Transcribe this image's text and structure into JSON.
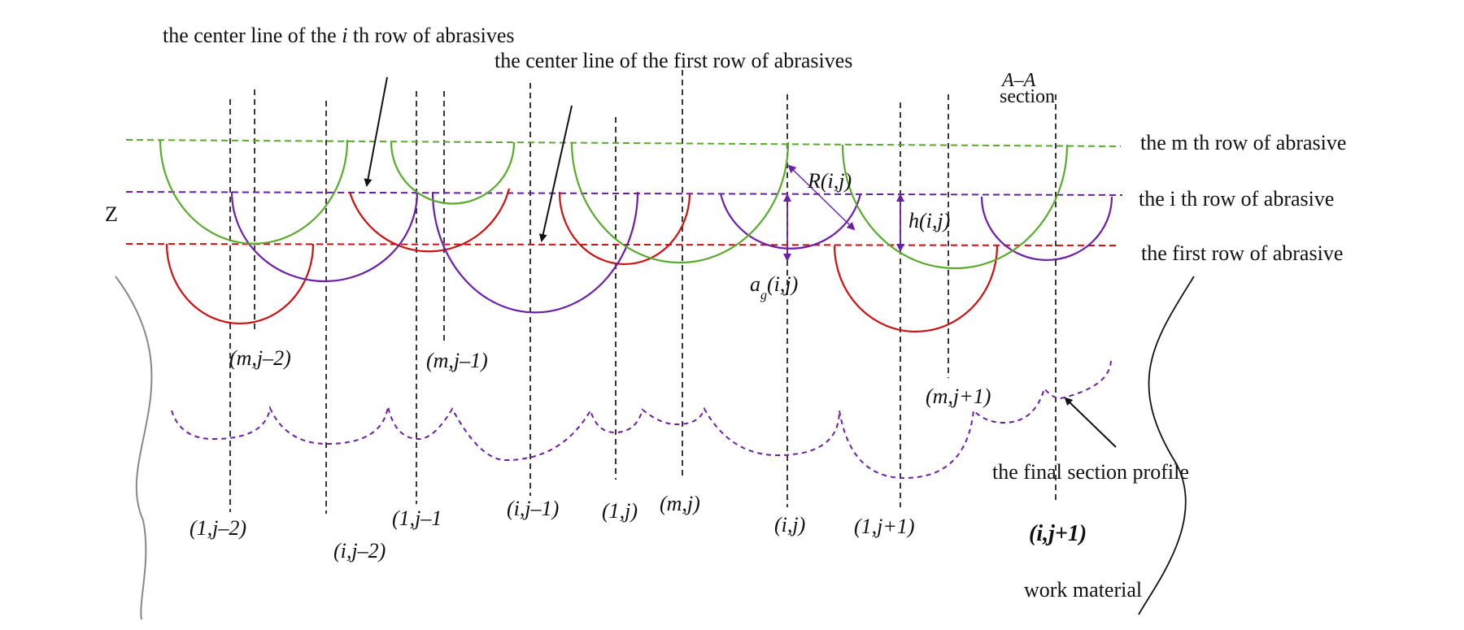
{
  "colors": {
    "first_row": "#cc1111",
    "ith_row": "#6a1fa6",
    "mth_row": "#5aaa2e",
    "profile": "#6a1fa6",
    "centerline": "#222222",
    "work_material_left": "#888888",
    "work_material_right": "#111111"
  },
  "labels": {
    "center_line_ith": "the center line of the",
    "center_line_ith_i": "i",
    "center_line_ith_rest": "th row of abrasives",
    "center_line_first": "the center line of the first row of abrasives",
    "section_a": "A–A",
    "section_word": "section",
    "row_m": "the m th row of abrasive",
    "row_i": "the i th row of abrasive",
    "row_first": "the first row of abrasive",
    "axis_z": "Z",
    "radius": "R(i,j)",
    "height": "h(i,j)",
    "ag_a": "a",
    "ag_g": "g",
    "ag_rest": "(i,j)",
    "final_profile": "the final section profile",
    "work_material": "work material"
  },
  "grain_labels": {
    "m_j_minus2": "(m,j–2)",
    "m_j_minus1": "(m,j–1)",
    "m_j_plus1": "(m,j+1)",
    "one_j_minus2": "(1,j–2)",
    "i_j_minus2": "(i,j–2)",
    "one_j_minus1": "(1,j–1",
    "i_j_minus1": "(i,j–1)",
    "one_j": "(1,j)",
    "m_j": "(m,j)",
    "i_j": "(i,j)",
    "one_j_plus1": "(1,j+1)",
    "i_j_plus1": "(i,j+1)"
  },
  "icons": {
    "arrow": "arrow-icon",
    "double_arrow": "double-arrow-icon"
  }
}
